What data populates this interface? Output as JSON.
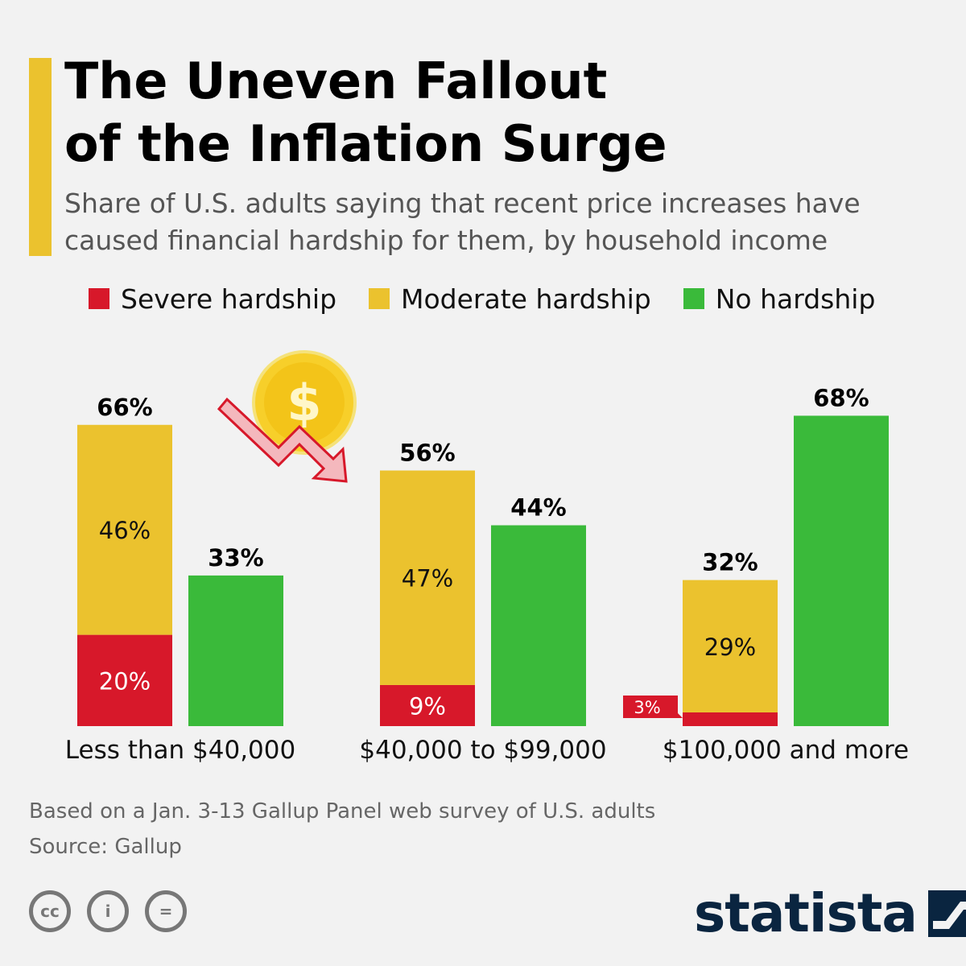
{
  "title_lines": [
    "The Uneven Fallout",
    "of the Inflation Surge"
  ],
  "subtitle_lines": [
    "Share of U.S. adults saying that recent price increases have",
    "caused financial hardship for them, by household income"
  ],
  "legend": [
    {
      "label": "Severe hardship",
      "color": "#d7182a"
    },
    {
      "label": "Moderate hardship",
      "color": "#ebc22e"
    },
    {
      "label": "No hardship",
      "color": "#3aba3a"
    }
  ],
  "colors": {
    "accent": "#ebc22e",
    "severe": "#d7182a",
    "moderate": "#ebc22e",
    "none": "#3aba3a",
    "background": "#f2f2f2",
    "brand": "#0a2540"
  },
  "chart_data": {
    "type": "bar",
    "categories": [
      "Less than $40,000",
      "$40,000 to $99,000",
      "$100,000 and more"
    ],
    "series": [
      {
        "name": "Severe hardship",
        "values": [
          20,
          9,
          3
        ],
        "labels": [
          "20%",
          "9%",
          "3%"
        ]
      },
      {
        "name": "Moderate hardship",
        "values": [
          46,
          47,
          29
        ],
        "labels": [
          "46%",
          "47%",
          "29%"
        ]
      },
      {
        "name": "No hardship",
        "values": [
          33,
          44,
          68
        ],
        "labels": [
          "33%",
          "44%",
          "68%"
        ]
      }
    ],
    "stack_totals": [
      66,
      56,
      32
    ],
    "stack_total_labels": [
      "66%",
      "56%",
      "32%"
    ],
    "stacked_series": [
      "Severe hardship",
      "Moderate hardship"
    ],
    "ylim": [
      0,
      70
    ],
    "grid": false,
    "legend_position": "top"
  },
  "decoration": {
    "coin_symbol": "$",
    "icon": "falling-coin-arrow-icon"
  },
  "footer": {
    "note": "Based on a Jan. 3-13 Gallup Panel web survey of U.S. adults",
    "source": "Source: Gallup"
  },
  "license_icons": [
    {
      "name": "cc-license-icon",
      "glyph": "cc"
    },
    {
      "name": "attribution-icon",
      "glyph": "i"
    },
    {
      "name": "no-derivatives-icon",
      "glyph": "="
    }
  ],
  "brand": {
    "name": "statista"
  }
}
